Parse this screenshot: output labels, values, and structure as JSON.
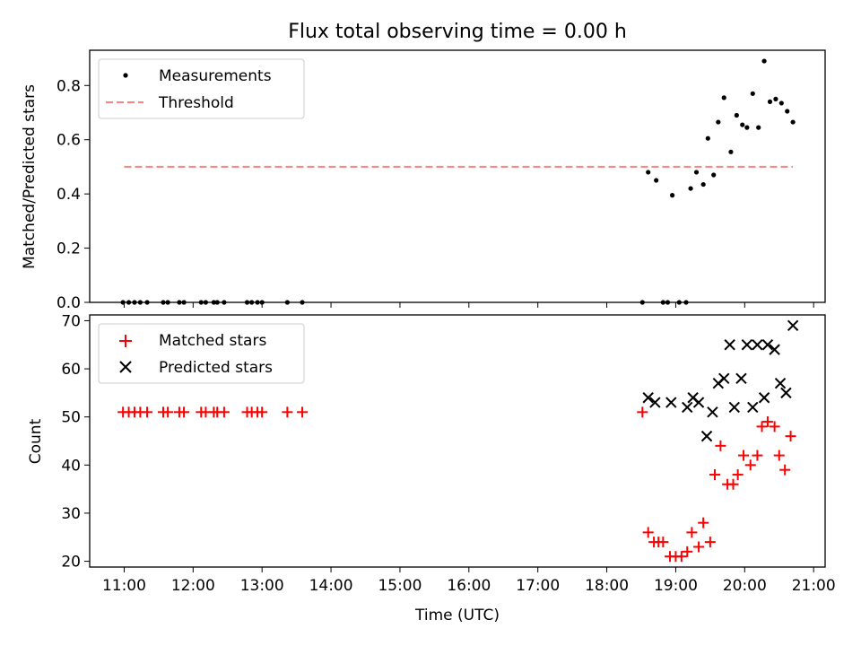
{
  "chart_data": [
    {
      "type": "scatter",
      "title": "Flux total observing time = 0.00 h",
      "xlabel": "",
      "ylabel": "Matched/Predicted stars",
      "xlim": [
        "10:30",
        "21:10"
      ],
      "ylim": [
        0,
        0.93
      ],
      "yticks": [
        0.0,
        0.2,
        0.4,
        0.6,
        0.8
      ],
      "ytick_labels": [
        "0.0",
        "0.2",
        "0.4",
        "0.6",
        "0.8"
      ],
      "grid": false,
      "legend_position": "upper-left",
      "legend": [
        {
          "label": "Measurements",
          "marker": "dot",
          "color": "#000000"
        },
        {
          "label": "Threshold",
          "marker": "dashed-line",
          "color": "#ff7f7f"
        }
      ],
      "threshold": {
        "y": 0.5,
        "x": [
          "11:00",
          "20:42"
        ],
        "color": "#ff7f7f"
      },
      "series": [
        {
          "marker": "dot",
          "color": "#000000",
          "points": [
            [
              "10:59",
              0
            ],
            [
              "11:04",
              0
            ],
            [
              "11:09",
              0
            ],
            [
              "11:14",
              0
            ],
            [
              "11:20",
              0
            ],
            [
              "11:34",
              0
            ],
            [
              "11:38",
              0
            ],
            [
              "11:48",
              0
            ],
            [
              "11:52",
              0
            ],
            [
              "12:07",
              0
            ],
            [
              "12:11",
              0
            ],
            [
              "12:18",
              0
            ],
            [
              "12:21",
              0
            ],
            [
              "12:27",
              0
            ],
            [
              "12:47",
              0
            ],
            [
              "12:51",
              0
            ],
            [
              "12:56",
              0
            ],
            [
              "13:00",
              0
            ],
            [
              "13:22",
              0
            ],
            [
              "13:35",
              0
            ],
            [
              "18:31",
              0
            ],
            [
              "18:36",
              0.48
            ],
            [
              "18:43",
              0.45
            ],
            [
              "18:49",
              0
            ],
            [
              "18:53",
              0
            ],
            [
              "18:57",
              0.395
            ],
            [
              "19:03",
              0
            ],
            [
              "19:09",
              0
            ],
            [
              "19:13",
              0.42
            ],
            [
              "19:18",
              0.48
            ],
            [
              "19:24",
              0.435
            ],
            [
              "19:28",
              0.605
            ],
            [
              "19:33",
              0.47
            ],
            [
              "19:37",
              0.665
            ],
            [
              "19:42",
              0.755
            ],
            [
              "19:48",
              0.555
            ],
            [
              "19:53",
              0.69
            ],
            [
              "19:58",
              0.655
            ],
            [
              "20:02",
              0.645
            ],
            [
              "20:07",
              0.77
            ],
            [
              "20:12",
              0.645
            ],
            [
              "20:17",
              0.89
            ],
            [
              "20:22",
              0.74
            ],
            [
              "20:27",
              0.75
            ],
            [
              "20:32",
              0.735
            ],
            [
              "20:37",
              0.705
            ],
            [
              "20:42",
              0.665
            ]
          ]
        }
      ]
    },
    {
      "type": "scatter",
      "title": "",
      "xlabel": "Time (UTC)",
      "ylabel": "Count",
      "xlim": [
        "10:30",
        "21:10"
      ],
      "ylim": [
        18.8,
        71.2
      ],
      "yticks": [
        20,
        30,
        40,
        50,
        60,
        70
      ],
      "ytick_labels": [
        "20",
        "30",
        "40",
        "50",
        "60",
        "70"
      ],
      "xticks": [
        "11:00",
        "12:00",
        "13:00",
        "14:00",
        "15:00",
        "16:00",
        "17:00",
        "18:00",
        "19:00",
        "20:00",
        "21:00"
      ],
      "grid": false,
      "legend_position": "upper-left",
      "legend": [
        {
          "label": "Matched stars",
          "marker": "plus",
          "color": "#ff0000"
        },
        {
          "label": "Predicted stars",
          "marker": "x",
          "color": "#000000"
        }
      ],
      "series": [
        {
          "name": "Matched stars",
          "marker": "plus",
          "color": "#ff0000",
          "points": [
            [
              "10:59",
              51
            ],
            [
              "11:04",
              51
            ],
            [
              "11:09",
              51
            ],
            [
              "11:14",
              51
            ],
            [
              "11:20",
              51
            ],
            [
              "11:34",
              51
            ],
            [
              "11:38",
              51
            ],
            [
              "11:48",
              51
            ],
            [
              "11:52",
              51
            ],
            [
              "12:07",
              51
            ],
            [
              "12:11",
              51
            ],
            [
              "12:18",
              51
            ],
            [
              "12:21",
              51
            ],
            [
              "12:27",
              51
            ],
            [
              "12:47",
              51
            ],
            [
              "12:51",
              51
            ],
            [
              "12:56",
              51
            ],
            [
              "13:00",
              51
            ],
            [
              "13:22",
              51
            ],
            [
              "13:35",
              51
            ],
            [
              "18:31",
              51
            ],
            [
              "18:36",
              26
            ],
            [
              "18:41",
              24
            ],
            [
              "18:45",
              24
            ],
            [
              "18:49",
              24
            ],
            [
              "18:55",
              21
            ],
            [
              "19:00",
              21
            ],
            [
              "19:05",
              21
            ],
            [
              "19:10",
              22
            ],
            [
              "19:14",
              26
            ],
            [
              "19:20",
              23
            ],
            [
              "19:24",
              28
            ],
            [
              "19:30",
              24
            ],
            [
              "19:34",
              38
            ],
            [
              "19:39",
              44
            ],
            [
              "19:45",
              36
            ],
            [
              "19:50",
              36
            ],
            [
              "19:54",
              38
            ],
            [
              "19:59",
              42
            ],
            [
              "20:05",
              40
            ],
            [
              "20:11",
              42
            ],
            [
              "20:15",
              48
            ],
            [
              "20:20",
              49
            ],
            [
              "20:26",
              48
            ],
            [
              "20:30",
              42
            ],
            [
              "20:35",
              39
            ],
            [
              "20:40",
              46
            ]
          ]
        },
        {
          "name": "Predicted stars",
          "marker": "x",
          "color": "#000000",
          "points": [
            [
              "18:36",
              54
            ],
            [
              "18:42",
              53
            ],
            [
              "18:56",
              53
            ],
            [
              "19:10",
              52
            ],
            [
              "19:15",
              54
            ],
            [
              "19:20",
              53
            ],
            [
              "19:27",
              46
            ],
            [
              "19:32",
              51
            ],
            [
              "19:37",
              57
            ],
            [
              "19:42",
              58
            ],
            [
              "19:47",
              65
            ],
            [
              "19:51",
              52
            ],
            [
              "19:57",
              58
            ],
            [
              "20:02",
              65
            ],
            [
              "20:07",
              52
            ],
            [
              "20:11",
              65
            ],
            [
              "20:17",
              54
            ],
            [
              "20:20",
              65
            ],
            [
              "20:26",
              64
            ],
            [
              "20:31",
              57
            ],
            [
              "20:36",
              55
            ],
            [
              "20:42",
              69
            ]
          ]
        }
      ]
    }
  ]
}
